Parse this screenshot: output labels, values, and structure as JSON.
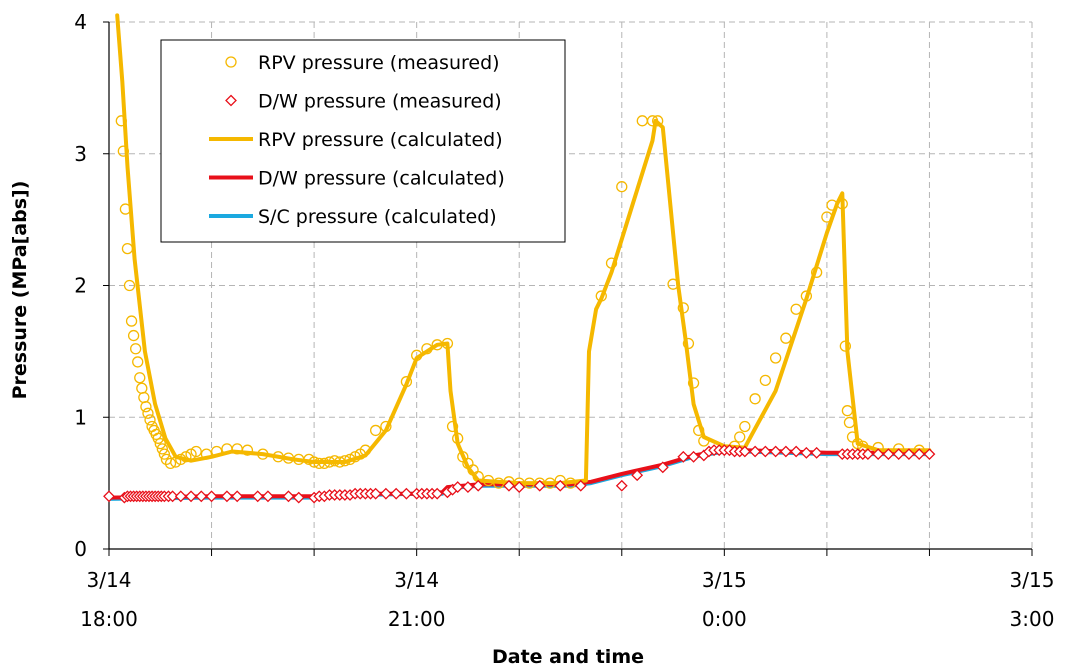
{
  "chart_data": {
    "type": "line",
    "title": "",
    "xlabel": "Date and time",
    "ylabel": "Pressure (MPa[abs])",
    "x_range_hours": [
      18,
      27
    ],
    "ylim": [
      0,
      4
    ],
    "grid": true,
    "grid_style": "dashed",
    "legend_position": "top-left",
    "x_ticks": [
      {
        "hour": 18,
        "date": "3/14",
        "time": "18:00"
      },
      {
        "hour": 21,
        "date": "3/14",
        "time": "21:00"
      },
      {
        "hour": 24,
        "date": "3/15",
        "time": "0:00"
      },
      {
        "hour": 27,
        "date": "3/15",
        "time": "3:00"
      }
    ],
    "y_ticks": [
      0,
      1,
      2,
      3,
      4
    ],
    "legend": [
      {
        "label": "RPV pressure (measured)",
        "kind": "marker",
        "marker": "circle",
        "color": "#F5B800"
      },
      {
        "label": "D/W pressure (measured)",
        "kind": "marker",
        "marker": "diamond",
        "color": "#E8101A"
      },
      {
        "label": "RPV pressure (calculated)",
        "kind": "line",
        "color": "#F5B800"
      },
      {
        "label": "D/W pressure (calculated)",
        "kind": "line",
        "color": "#E8101A"
      },
      {
        "label": "S/C pressure (calculated)",
        "kind": "line",
        "color": "#1BA9E0"
      }
    ],
    "series": [
      {
        "name": "S/C pressure (calculated)",
        "kind": "line",
        "color": "#1BA9E0",
        "x": [
          18.0,
          19.0,
          20.0,
          20.5,
          21.0,
          21.25,
          21.3,
          21.6,
          22.0,
          22.5,
          22.7,
          23.0,
          23.4,
          23.7,
          24.0,
          24.2,
          25.0,
          25.2,
          26.0
        ],
        "y": [
          0.38,
          0.39,
          0.39,
          0.41,
          0.42,
          0.42,
          0.46,
          0.48,
          0.48,
          0.48,
          0.5,
          0.56,
          0.63,
          0.7,
          0.74,
          0.74,
          0.72,
          0.72,
          0.72
        ]
      },
      {
        "name": "D/W pressure (calculated)",
        "kind": "line",
        "color": "#E8101A",
        "x": [
          18.0,
          19.0,
          20.0,
          20.5,
          21.0,
          21.25,
          21.3,
          21.6,
          22.0,
          22.5,
          22.7,
          23.0,
          23.4,
          23.7,
          24.0,
          24.2,
          25.0,
          25.2,
          26.0
        ],
        "y": [
          0.39,
          0.4,
          0.4,
          0.42,
          0.42,
          0.43,
          0.47,
          0.49,
          0.49,
          0.49,
          0.51,
          0.57,
          0.64,
          0.71,
          0.75,
          0.75,
          0.73,
          0.73,
          0.73
        ]
      },
      {
        "name": "RPV pressure (calculated)",
        "kind": "line",
        "color": "#F5B800",
        "x": [
          18.08,
          18.13,
          18.18,
          18.25,
          18.35,
          18.45,
          18.55,
          18.65,
          18.8,
          19.0,
          19.2,
          19.5,
          19.8,
          20.0,
          20.3,
          20.5,
          20.7,
          20.9,
          21.0,
          21.2,
          21.3,
          21.33,
          21.4,
          21.5,
          21.6,
          22.0,
          22.2,
          22.4,
          22.65,
          22.68,
          22.75,
          22.8,
          22.9,
          23.1,
          23.3,
          23.33,
          23.4,
          23.55,
          23.62,
          23.7,
          23.8,
          24.0,
          24.2,
          24.5,
          24.8,
          25.0,
          25.1,
          25.15,
          25.2,
          25.3,
          25.5,
          26.0
        ],
        "y": [
          4.05,
          3.55,
          2.9,
          2.2,
          1.5,
          1.1,
          0.84,
          0.7,
          0.67,
          0.7,
          0.74,
          0.72,
          0.68,
          0.66,
          0.66,
          0.71,
          0.9,
          1.25,
          1.45,
          1.55,
          1.56,
          1.2,
          0.8,
          0.62,
          0.52,
          0.5,
          0.5,
          0.5,
          0.52,
          1.5,
          1.82,
          1.9,
          2.1,
          2.6,
          3.1,
          3.25,
          3.2,
          2.0,
          1.6,
          1.1,
          0.85,
          0.78,
          0.77,
          1.2,
          1.9,
          2.4,
          2.62,
          2.7,
          1.5,
          0.8,
          0.75,
          0.75
        ]
      },
      {
        "name": "RPV pressure (measured)",
        "kind": "marker",
        "marker": "circle",
        "color": "#F5B800",
        "x": [
          18.12,
          18.14,
          18.16,
          18.18,
          18.2,
          18.22,
          18.24,
          18.26,
          18.28,
          18.3,
          18.32,
          18.34,
          18.36,
          18.38,
          18.4,
          18.42,
          18.44,
          18.46,
          18.48,
          18.5,
          18.52,
          18.54,
          18.56,
          18.6,
          18.65,
          18.7,
          18.75,
          18.8,
          18.85,
          18.95,
          19.05,
          19.15,
          19.25,
          19.35,
          19.5,
          19.65,
          19.75,
          19.85,
          19.95,
          20.0,
          20.05,
          20.1,
          20.15,
          20.2,
          20.25,
          20.3,
          20.35,
          20.4,
          20.45,
          20.5,
          20.6,
          20.7,
          20.9,
          21.0,
          21.1,
          21.2,
          21.3,
          21.35,
          21.4,
          21.45,
          21.5,
          21.55,
          21.6,
          21.7,
          21.8,
          21.9,
          22.0,
          22.1,
          22.2,
          22.3,
          22.4,
          22.5,
          22.8,
          22.9,
          23.0,
          23.2,
          23.3,
          23.35,
          23.5,
          23.6,
          23.65,
          23.7,
          23.75,
          23.8,
          24.1,
          24.15,
          24.2,
          24.3,
          24.4,
          24.5,
          24.6,
          24.7,
          24.8,
          24.9,
          25.0,
          25.05,
          25.15,
          25.18,
          25.2,
          25.22,
          25.25,
          25.3,
          25.35,
          25.5,
          25.7,
          25.9
        ],
        "y": [
          3.25,
          3.02,
          2.58,
          2.28,
          2.0,
          1.73,
          1.62,
          1.52,
          1.42,
          1.3,
          1.22,
          1.15,
          1.08,
          1.03,
          0.98,
          0.93,
          0.9,
          0.87,
          0.84,
          0.8,
          0.76,
          0.72,
          0.68,
          0.65,
          0.66,
          0.68,
          0.7,
          0.72,
          0.74,
          0.72,
          0.74,
          0.76,
          0.76,
          0.75,
          0.72,
          0.7,
          0.69,
          0.68,
          0.68,
          0.66,
          0.65,
          0.65,
          0.66,
          0.67,
          0.66,
          0.67,
          0.68,
          0.7,
          0.72,
          0.75,
          0.9,
          0.93,
          1.27,
          1.47,
          1.52,
          1.55,
          1.56,
          0.93,
          0.84,
          0.7,
          0.65,
          0.6,
          0.55,
          0.52,
          0.5,
          0.51,
          0.5,
          0.5,
          0.5,
          0.5,
          0.52,
          0.5,
          1.92,
          2.17,
          2.75,
          3.25,
          3.25,
          3.25,
          2.01,
          1.83,
          1.56,
          1.26,
          0.9,
          0.82,
          0.78,
          0.85,
          0.93,
          1.14,
          1.28,
          1.45,
          1.6,
          1.82,
          1.92,
          2.1,
          2.52,
          2.61,
          2.62,
          1.54,
          1.05,
          0.96,
          0.85,
          0.8,
          0.78,
          0.77,
          0.76,
          0.75
        ]
      },
      {
        "name": "D/W pressure (measured)",
        "kind": "marker",
        "marker": "diamond",
        "color": "#E8101A",
        "x": [
          18.0,
          18.15,
          18.18,
          18.21,
          18.24,
          18.27,
          18.3,
          18.33,
          18.36,
          18.39,
          18.42,
          18.45,
          18.48,
          18.51,
          18.54,
          18.58,
          18.62,
          18.7,
          18.8,
          18.9,
          19.0,
          19.15,
          19.25,
          19.45,
          19.55,
          19.75,
          19.85,
          20.0,
          20.05,
          20.1,
          20.15,
          20.2,
          20.25,
          20.3,
          20.35,
          20.4,
          20.45,
          20.5,
          20.55,
          20.6,
          20.7,
          20.8,
          20.9,
          21.0,
          21.05,
          21.1,
          21.15,
          21.2,
          21.3,
          21.35,
          21.4,
          21.5,
          21.6,
          21.9,
          22.0,
          22.2,
          22.4,
          22.6,
          23.0,
          23.15,
          23.4,
          23.6,
          23.7,
          23.8,
          23.85,
          23.9,
          23.95,
          24.0,
          24.05,
          24.1,
          24.15,
          24.2,
          24.3,
          24.4,
          24.5,
          24.6,
          24.7,
          24.8,
          24.9,
          25.15,
          25.2,
          25.25,
          25.3,
          25.35,
          25.4,
          25.5,
          25.6,
          25.7,
          25.8,
          25.9,
          26.0
        ],
        "y": [
          0.4,
          0.39,
          0.4,
          0.4,
          0.4,
          0.4,
          0.4,
          0.4,
          0.4,
          0.4,
          0.4,
          0.4,
          0.4,
          0.4,
          0.4,
          0.4,
          0.4,
          0.4,
          0.4,
          0.4,
          0.4,
          0.4,
          0.4,
          0.4,
          0.4,
          0.4,
          0.39,
          0.39,
          0.4,
          0.4,
          0.41,
          0.41,
          0.41,
          0.41,
          0.41,
          0.42,
          0.42,
          0.42,
          0.42,
          0.42,
          0.42,
          0.42,
          0.42,
          0.42,
          0.42,
          0.42,
          0.42,
          0.42,
          0.43,
          0.45,
          0.47,
          0.47,
          0.48,
          0.48,
          0.47,
          0.48,
          0.48,
          0.48,
          0.48,
          0.56,
          0.62,
          0.7,
          0.7,
          0.71,
          0.74,
          0.75,
          0.75,
          0.75,
          0.75,
          0.74,
          0.74,
          0.74,
          0.74,
          0.74,
          0.74,
          0.74,
          0.74,
          0.73,
          0.73,
          0.72,
          0.72,
          0.72,
          0.72,
          0.72,
          0.72,
          0.72,
          0.72,
          0.72,
          0.72,
          0.72,
          0.72
        ]
      }
    ]
  }
}
